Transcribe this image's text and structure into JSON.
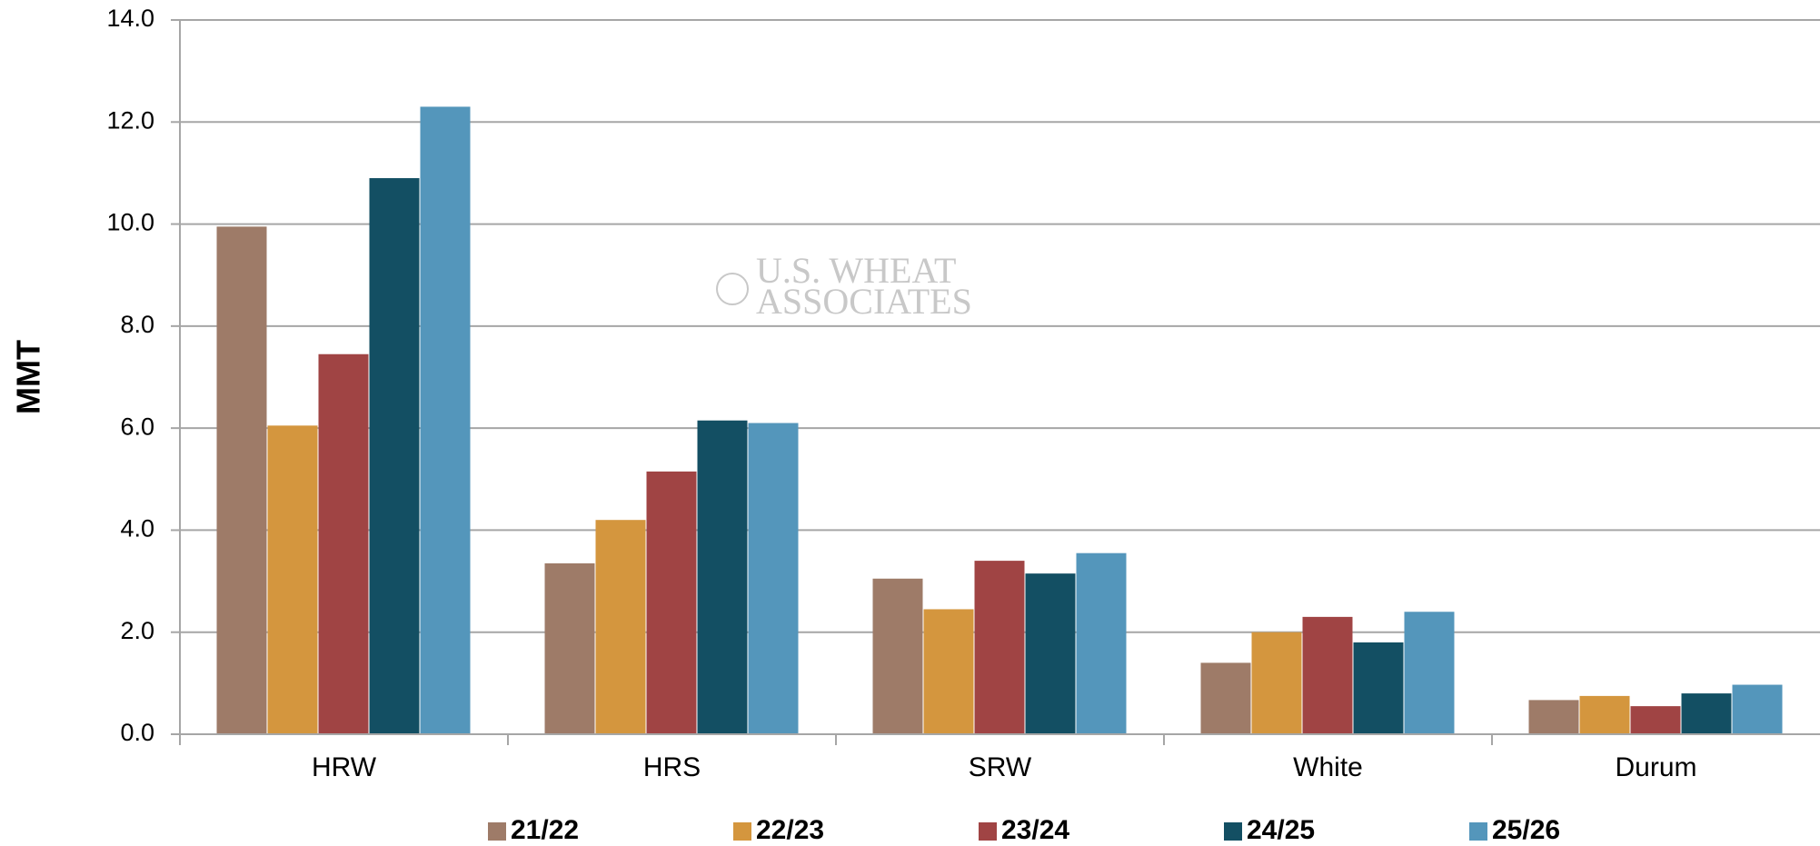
{
  "chart_data": {
    "type": "bar",
    "ylabel": "MMT",
    "watermark": [
      "U.S. WHEAT",
      "ASSOCIATES"
    ],
    "categories": [
      "HRW",
      "HRS",
      "SRW",
      "White",
      "Durum"
    ],
    "series": [
      {
        "name": "21/22",
        "color": "#9e7b68",
        "values": [
          9.95,
          3.35,
          3.05,
          1.4,
          0.67
        ]
      },
      {
        "name": "22/23",
        "color": "#d4963e",
        "values": [
          6.05,
          4.2,
          2.45,
          2.0,
          0.75
        ]
      },
      {
        "name": "23/24",
        "color": "#a04444",
        "values": [
          7.45,
          5.15,
          3.4,
          2.3,
          0.55
        ]
      },
      {
        "name": "24/25",
        "color": "#134f63",
        "values": [
          10.9,
          6.15,
          3.15,
          1.8,
          0.8
        ]
      },
      {
        "name": "25/26",
        "color": "#5496bb",
        "values": [
          12.3,
          6.1,
          3.55,
          2.4,
          0.97
        ]
      }
    ],
    "ylim": [
      0,
      14
    ],
    "yticks": [
      {
        "value": 0,
        "label": "0.0"
      },
      {
        "value": 2,
        "label": "2.0"
      },
      {
        "value": 4,
        "label": "4.0"
      },
      {
        "value": 6,
        "label": "6.0"
      },
      {
        "value": 8,
        "label": "8.0"
      },
      {
        "value": 10,
        "label": "10.0"
      },
      {
        "value": 12,
        "label": "12.0"
      },
      {
        "value": 14,
        "label": "14.0"
      }
    ],
    "grid": true,
    "legend": "bottom"
  }
}
